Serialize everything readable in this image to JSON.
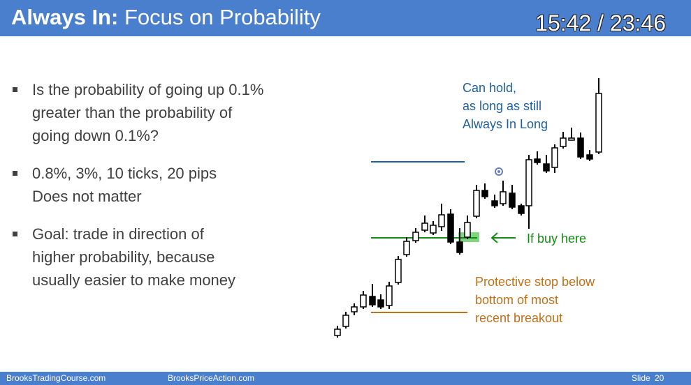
{
  "header": {
    "title_bold": "Always In:",
    "title_rest": "Focus on Probability",
    "timer": "15:42 / 23:46"
  },
  "bullets": [
    {
      "lines": [
        "Is the probability of going up 0.1%",
        "greater than the probability of",
        "going down 0.1%?"
      ]
    },
    {
      "lines": [
        "0.8%, 3%, 10 ticks, 20 pips",
        "Does not matter"
      ]
    },
    {
      "lines": [
        "Goal: trade in direction of",
        "higher probability, because",
        "usually easier to make money"
      ]
    }
  ],
  "annotations": {
    "hold": [
      "Can hold,",
      "as long as still",
      "Always In Long"
    ],
    "buy": "If buy here",
    "stop": [
      "Protective stop below",
      "bottom of most",
      "recent breakout"
    ]
  },
  "footer": {
    "left": "BrooksTradingCourse.com",
    "center": "BrooksPriceAction.com",
    "slide_label": "Slide",
    "slide_number": "20"
  },
  "colors": {
    "header_bg": "#4a7fce",
    "target_line": "#1f5f9e",
    "entry_line": "#138a13",
    "stop_line": "#c0701b",
    "entry_zone": "#7fd67f"
  }
}
